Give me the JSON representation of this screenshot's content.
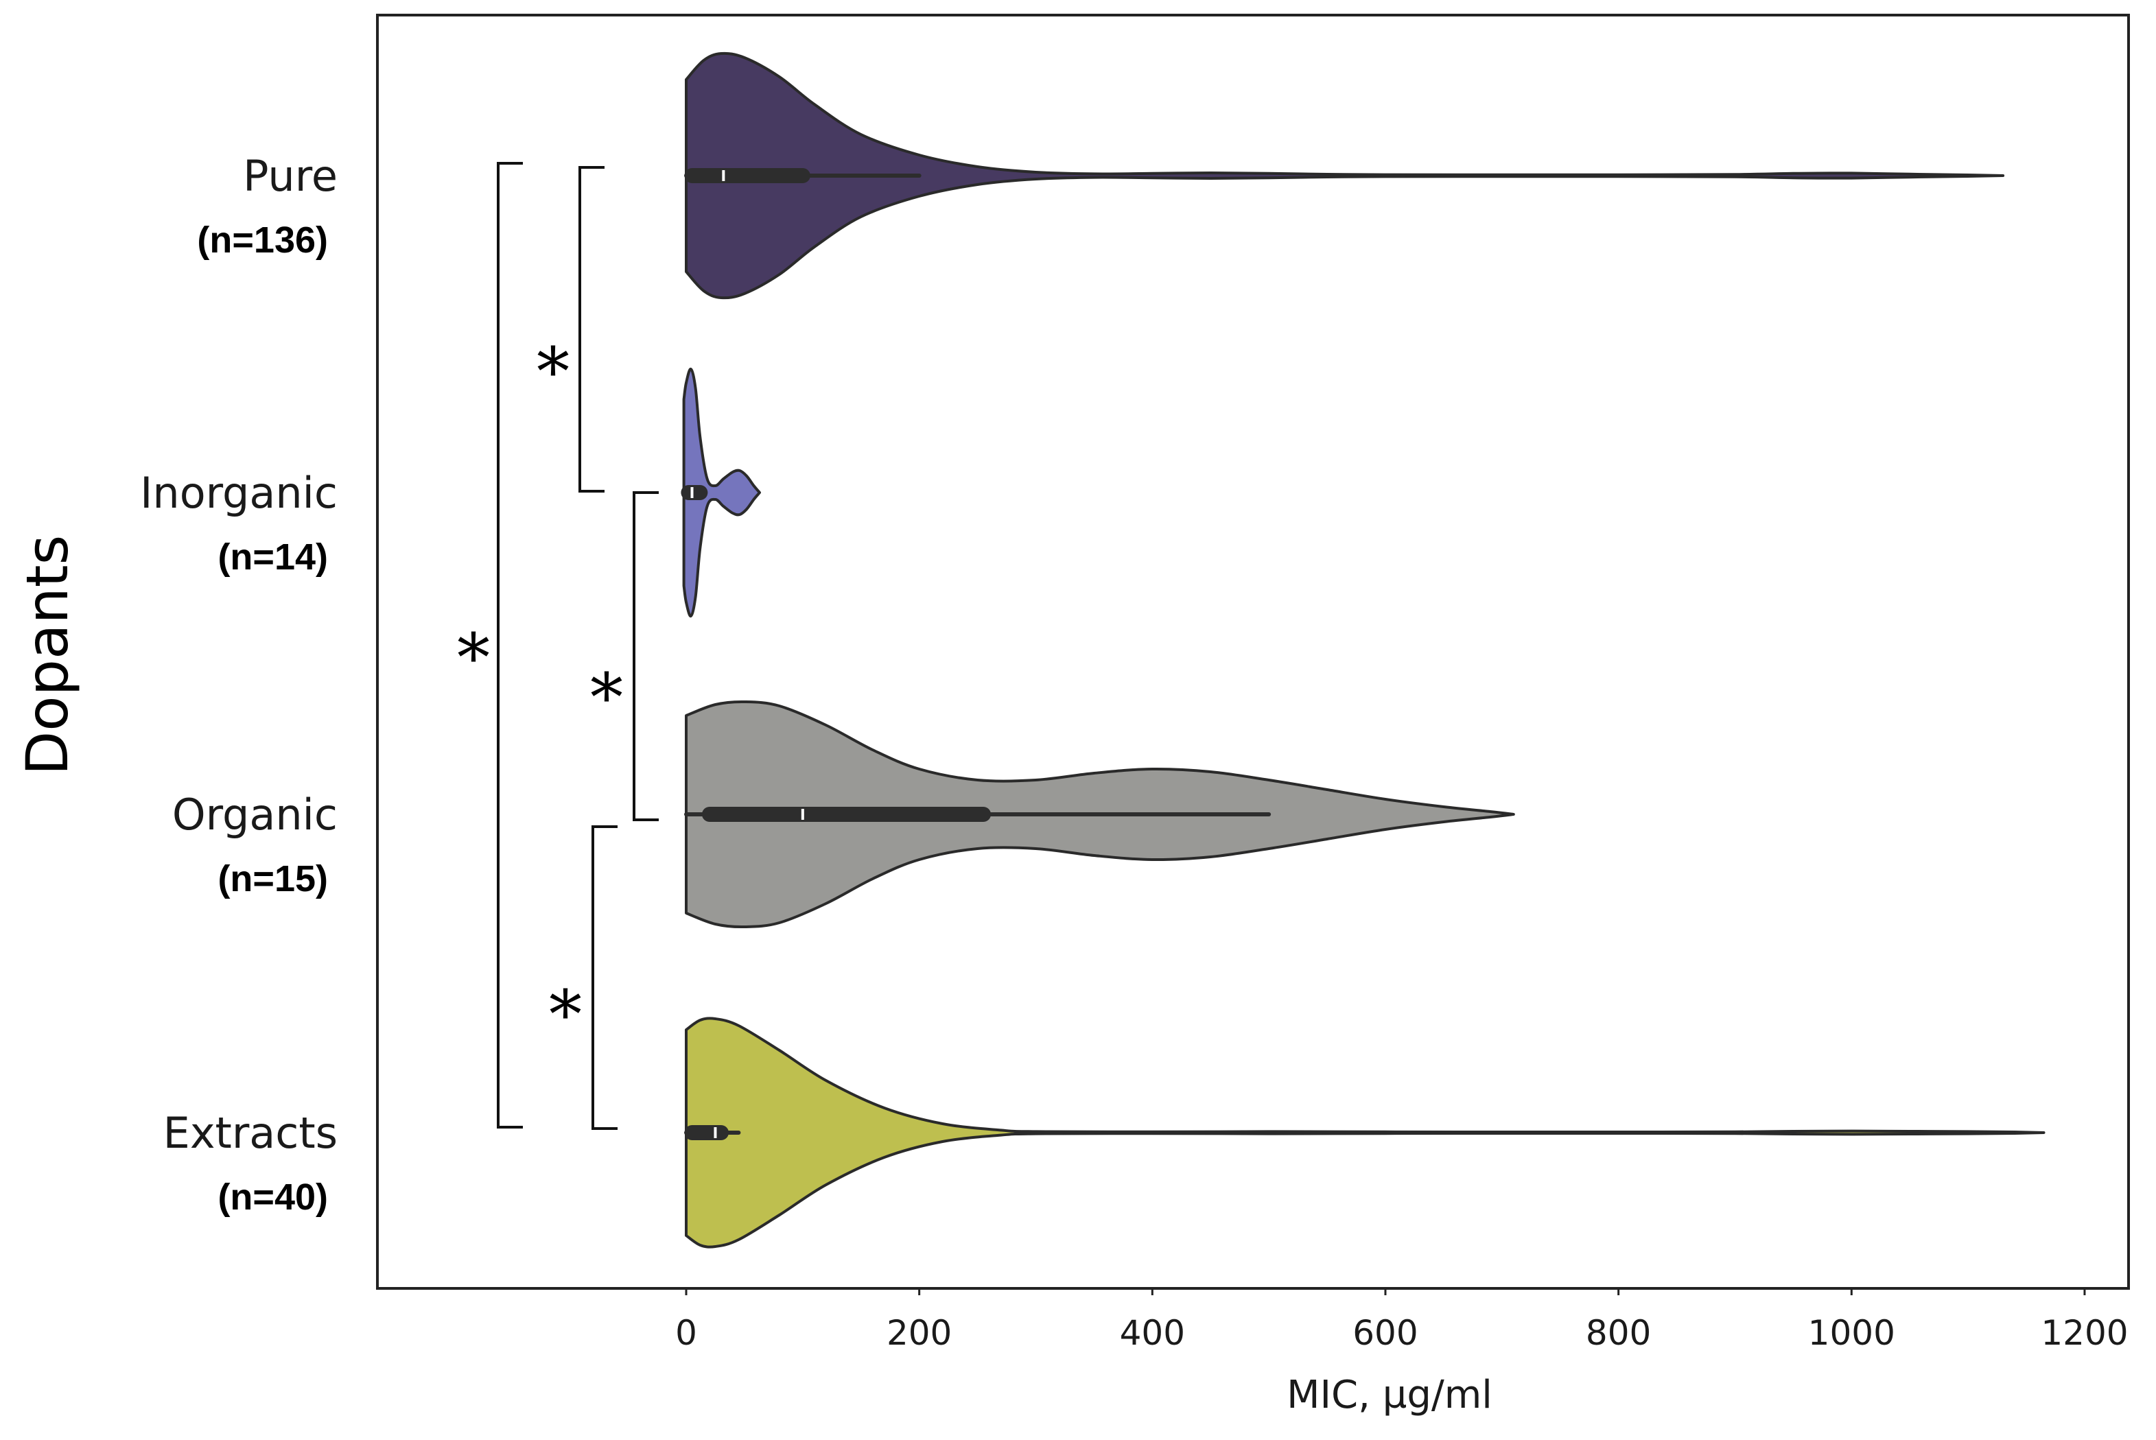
{
  "chart_data": {
    "type": "violin",
    "orientation": "horizontal",
    "xlabel": "MIC, µg/ml",
    "ylabel": "Dopants",
    "xlim": [
      -265,
      1220
    ],
    "xticks": [
      0,
      200,
      400,
      600,
      800,
      1000,
      1200
    ],
    "xtick_labels": [
      "0",
      "200",
      "400",
      "600",
      "800",
      "1000",
      "1200"
    ],
    "grid": false,
    "categories": [
      {
        "name": "Pure",
        "n_label": "(n=136)",
        "color": "#473a61",
        "min": 0,
        "max": 1130,
        "q1": 5,
        "median": 32,
        "q3": 100,
        "whisker_low": 0,
        "whisker_high": 200,
        "density": [
          [
            0,
            0.7
          ],
          [
            15,
            0.84
          ],
          [
            30,
            0.89
          ],
          [
            50,
            0.86
          ],
          [
            80,
            0.72
          ],
          [
            110,
            0.52
          ],
          [
            150,
            0.3
          ],
          [
            200,
            0.15
          ],
          [
            250,
            0.065
          ],
          [
            300,
            0.025
          ],
          [
            350,
            0.013
          ],
          [
            400,
            0.016
          ],
          [
            450,
            0.02
          ],
          [
            500,
            0.016
          ],
          [
            550,
            0.01
          ],
          [
            600,
            0.007
          ],
          [
            700,
            0.006
          ],
          [
            800,
            0.006
          ],
          [
            900,
            0.009
          ],
          [
            950,
            0.016
          ],
          [
            1000,
            0.018
          ],
          [
            1050,
            0.011
          ],
          [
            1100,
            0.005
          ],
          [
            1130,
            0.0
          ]
        ]
      },
      {
        "name": "Inorganic",
        "n_label": "(n=14)",
        "color": "#7575bd",
        "min": 0,
        "max": 60,
        "q1": 2,
        "median": 5,
        "q3": 12,
        "whisker_low": 0,
        "whisker_high": 12,
        "density": [
          [
            -2,
            0.68
          ],
          [
            0,
            0.8
          ],
          [
            4,
            0.9
          ],
          [
            8,
            0.76
          ],
          [
            12,
            0.4
          ],
          [
            18,
            0.1
          ],
          [
            25,
            0.05
          ],
          [
            32,
            0.1
          ],
          [
            40,
            0.15
          ],
          [
            46,
            0.16
          ],
          [
            52,
            0.12
          ],
          [
            58,
            0.05
          ],
          [
            63,
            0.0
          ]
        ]
      },
      {
        "name": "Organic",
        "n_label": "(n=15)",
        "color": "#999996",
        "min": 0,
        "max": 710,
        "q1": 20,
        "median": 100,
        "q3": 255,
        "whisker_low": 0,
        "whisker_high": 500,
        "density": [
          [
            0,
            0.72
          ],
          [
            25,
            0.8
          ],
          [
            50,
            0.82
          ],
          [
            80,
            0.79
          ],
          [
            120,
            0.65
          ],
          [
            160,
            0.47
          ],
          [
            200,
            0.33
          ],
          [
            250,
            0.25
          ],
          [
            300,
            0.25
          ],
          [
            350,
            0.3
          ],
          [
            400,
            0.33
          ],
          [
            450,
            0.31
          ],
          [
            500,
            0.25
          ],
          [
            550,
            0.18
          ],
          [
            600,
            0.11
          ],
          [
            650,
            0.055
          ],
          [
            690,
            0.02
          ],
          [
            710,
            0.0
          ]
        ]
      },
      {
        "name": "Extracts",
        "n_label": "(n=40)",
        "color": "#bebf4f",
        "min": 0,
        "max": 1165,
        "q1": 5,
        "median": 25,
        "q3": 30,
        "whisker_low": 0,
        "whisker_high": 45,
        "density": [
          [
            0,
            0.75
          ],
          [
            12,
            0.82
          ],
          [
            25,
            0.83
          ],
          [
            45,
            0.78
          ],
          [
            80,
            0.6
          ],
          [
            120,
            0.38
          ],
          [
            170,
            0.18
          ],
          [
            220,
            0.065
          ],
          [
            270,
            0.018
          ],
          [
            300,
            0.008
          ],
          [
            400,
            0.006
          ],
          [
            500,
            0.008
          ],
          [
            600,
            0.006
          ],
          [
            700,
            0.005
          ],
          [
            800,
            0.005
          ],
          [
            900,
            0.006
          ],
          [
            950,
            0.01
          ],
          [
            1000,
            0.012
          ],
          [
            1050,
            0.01
          ],
          [
            1100,
            0.008
          ],
          [
            1140,
            0.005
          ],
          [
            1165,
            0.0
          ]
        ]
      }
    ],
    "significance": [
      {
        "from": "Pure",
        "to": "Inorganic",
        "label": "*"
      },
      {
        "from": "Inorganic",
        "to": "Organic",
        "label": "*"
      },
      {
        "from": "Organic",
        "to": "Extracts",
        "label": "*"
      },
      {
        "from": "Pure",
        "to": "Extracts",
        "label": "*"
      }
    ]
  }
}
